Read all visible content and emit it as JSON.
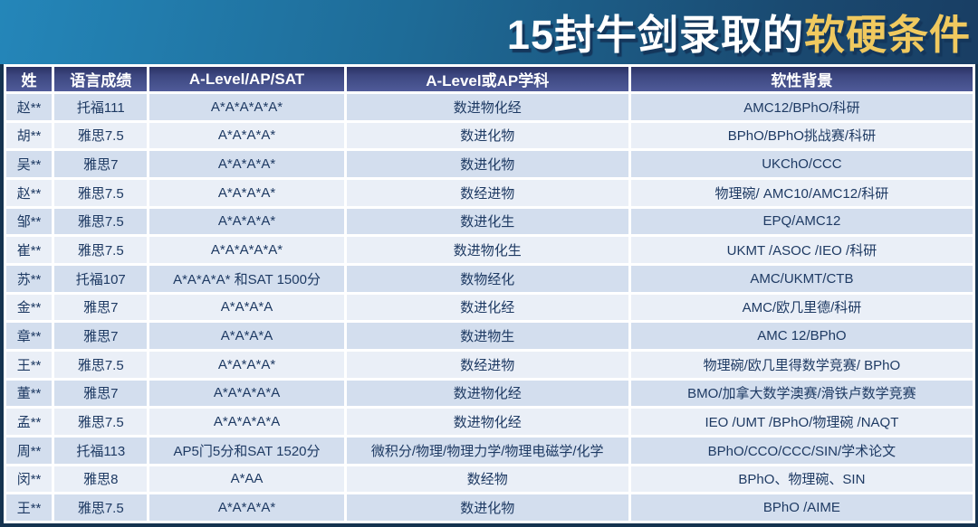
{
  "title": {
    "prefix": "15封牛剑录取的",
    "highlight": "软硬条件"
  },
  "colors": {
    "background_top_left": "#2486B9",
    "background_bottom_right": "#18375C",
    "title_text": "#FFFFFF",
    "title_highlight": "#F0C95F",
    "header_bg": "#3D4780",
    "row_odd_bg": "#D3DEEE",
    "row_even_bg": "#EAEFF7",
    "cell_text": "#1E3A63",
    "frame_border": "#15334F"
  },
  "table": {
    "headers": [
      "姓",
      "语言成绩",
      "A-Level/AP/SAT",
      "A-Level或AP学科",
      "软性背景"
    ],
    "rows": [
      [
        "赵**",
        "托福111",
        "A*A*A*A*A*",
        "数进物化经",
        "AMC12/BPhO/科研"
      ],
      [
        "胡**",
        "雅思7.5",
        "A*A*A*A*",
        "数进化物",
        "BPhO/BPhO挑战赛/科研"
      ],
      [
        "吴**",
        "雅思7",
        "A*A*A*A*",
        "数进化物",
        "UKChO/CCC"
      ],
      [
        "赵**",
        "雅思7.5",
        "A*A*A*A*",
        "数经进物",
        "物理碗/ AMC10/AMC12/科研"
      ],
      [
        "邹**",
        "雅思7.5",
        "A*A*A*A*",
        "数进化生",
        "EPQ/AMC12"
      ],
      [
        "崔**",
        "雅思7.5",
        "A*A*A*A*A*",
        "数进物化生",
        "UKMT /ASOC /IEO /科研"
      ],
      [
        "苏**",
        "托福107",
        "A*A*A*A*  和SAT 1500分",
        "数物经化",
        "AMC/UKMT/CTB"
      ],
      [
        "金**",
        "雅思7",
        "A*A*A*A",
        "数进化经",
        "AMC/欧几里德/科研"
      ],
      [
        "章**",
        "雅思7",
        "A*A*A*A",
        "数进物生",
        "AMC 12/BPhO"
      ],
      [
        "王**",
        "雅思7.5",
        "A*A*A*A*",
        "数经进物",
        "物理碗/欧几里得数学竞赛/ BPhO"
      ],
      [
        "董**",
        "雅思7",
        "A*A*A*A*A",
        "数进物化经",
        "BMO/加拿大数学澳赛/滑铁卢数学竞赛"
      ],
      [
        "孟**",
        "雅思7.5",
        "A*A*A*A*A",
        "数进物化经",
        "IEO /UMT /BPhO/物理碗 /NAQT"
      ],
      [
        "周**",
        "托福113",
        "AP5门5分和SAT 1520分",
        "微积分/物理/物理力学/物理电磁学/化学",
        "BPhO/CCO/CCC/SIN/学术论文"
      ],
      [
        "闵**",
        "雅思8",
        "A*AA",
        "数经物",
        "BPhO、物理碗、SIN"
      ],
      [
        "王**",
        "雅思7.5",
        "A*A*A*A*",
        "数进化物",
        "BPhO /AIME"
      ]
    ]
  },
  "chart_data": {
    "type": "table",
    "title": "15封牛剑录取的软硬条件",
    "columns": [
      "姓",
      "语言成绩",
      "A-Level/AP/SAT",
      "A-Level或AP学科",
      "软性背景"
    ],
    "rows": [
      [
        "赵**",
        "托福111",
        "A*A*A*A*A*",
        "数进物化经",
        "AMC12/BPhO/科研"
      ],
      [
        "胡**",
        "雅思7.5",
        "A*A*A*A*",
        "数进化物",
        "BPhO/BPhO挑战赛/科研"
      ],
      [
        "吴**",
        "雅思7",
        "A*A*A*A*",
        "数进化物",
        "UKChO/CCC"
      ],
      [
        "赵**",
        "雅思7.5",
        "A*A*A*A*",
        "数经进物",
        "物理碗/ AMC10/AMC12/科研"
      ],
      [
        "邹**",
        "雅思7.5",
        "A*A*A*A*",
        "数进化生",
        "EPQ/AMC12"
      ],
      [
        "崔**",
        "雅思7.5",
        "A*A*A*A*A*",
        "数进物化生",
        "UKMT /ASOC /IEO /科研"
      ],
      [
        "苏**",
        "托福107",
        "A*A*A*A*  和SAT 1500分",
        "数物经化",
        "AMC/UKMT/CTB"
      ],
      [
        "金**",
        "雅思7",
        "A*A*A*A",
        "数进化经",
        "AMC/欧几里德/科研"
      ],
      [
        "章**",
        "雅思7",
        "A*A*A*A",
        "数进物生",
        "AMC 12/BPhO"
      ],
      [
        "王**",
        "雅思7.5",
        "A*A*A*A*",
        "数经进物",
        "物理碗/欧几里得数学竞赛/ BPhO"
      ],
      [
        "董**",
        "雅思7",
        "A*A*A*A*A",
        "数进物化经",
        "BMO/加拿大数学澳赛/滑铁卢数学竞赛"
      ],
      [
        "孟**",
        "雅思7.5",
        "A*A*A*A*A",
        "数进物化经",
        "IEO /UMT /BPhO/物理碗 /NAQT"
      ],
      [
        "周**",
        "托福113",
        "AP5门5分和SAT 1520分",
        "微积分/物理/物理力学/物理电磁学/化学",
        "BPhO/CCO/CCC/SIN/学术论文"
      ],
      [
        "闵**",
        "雅思8",
        "A*AA",
        "数经物",
        "BPhO、物理碗、SIN"
      ],
      [
        "王**",
        "雅思7.5",
        "A*A*A*A*",
        "数进化物",
        "BPhO /AIME"
      ]
    ]
  }
}
